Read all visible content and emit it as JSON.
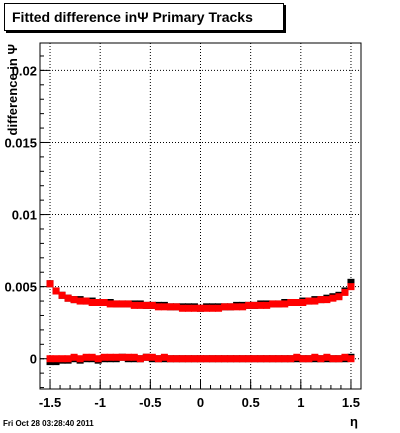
{
  "chart_data": {
    "type": "scatter",
    "title": "Fitted difference inΨ   Primary Tracks",
    "xlabel": "η",
    "ylabel": "difference in Ψ",
    "xlim": [
      -1.6,
      1.6
    ],
    "ylim": [
      -0.0021,
      0.0219
    ],
    "x_ticks": [
      -1.5,
      -1,
      -0.5,
      0,
      0.5,
      1,
      1.5
    ],
    "x_tick_labels": [
      "-1.5",
      "-1",
      "-0.5",
      "0",
      "0.5",
      "1",
      "1.5"
    ],
    "y_ticks": [
      0,
      0.005,
      0.01,
      0.015,
      0.02
    ],
    "y_tick_labels": [
      "0",
      "0.005",
      "0.01",
      "0.015",
      "0.02"
    ],
    "grid": true,
    "legend": "none",
    "series": [
      {
        "color": "#000000",
        "x": [
          -1.5,
          -1.44,
          -1.38,
          -1.32,
          -1.26,
          -1.2,
          -1.14,
          -1.08,
          -1.02,
          -0.96,
          -0.9,
          -0.84,
          -0.78,
          -0.72,
          -0.66,
          -0.6,
          -0.54,
          -0.48,
          -0.42,
          -0.36,
          -0.3,
          -0.24,
          -0.18,
          -0.12,
          -0.06,
          0,
          0.06,
          0.12,
          0.18,
          0.24,
          0.3,
          0.36,
          0.42,
          0.48,
          0.54,
          0.6,
          0.66,
          0.72,
          0.78,
          0.84,
          0.9,
          0.96,
          1.02,
          1.08,
          1.14,
          1.2,
          1.26,
          1.32,
          1.38,
          1.44,
          1.5
        ],
        "y_upper": [
          0.0052,
          0.0047,
          0.0044,
          0.0042,
          0.0041,
          0.0041,
          0.004,
          0.004,
          0.0039,
          0.0039,
          0.0039,
          0.0038,
          0.0038,
          0.0038,
          0.0038,
          0.0038,
          0.0037,
          0.0037,
          0.0037,
          0.0037,
          0.0036,
          0.0036,
          0.0036,
          0.0036,
          0.0036,
          0.0035,
          0.0036,
          0.0036,
          0.0036,
          0.0036,
          0.0036,
          0.0037,
          0.0037,
          0.0037,
          0.0037,
          0.0038,
          0.0038,
          0.0038,
          0.0038,
          0.0039,
          0.0039,
          0.0039,
          0.004,
          0.004,
          0.0041,
          0.0041,
          0.0042,
          0.0043,
          0.0044,
          0.0047,
          0.0053
        ],
        "y_lower": [
          -0.0002,
          -0.0002,
          -0.0001,
          -0.0001,
          0,
          -0.0001,
          0,
          0,
          -0.0001,
          0,
          0,
          0,
          0.0001,
          0,
          0,
          0,
          0.0001,
          0,
          0,
          0,
          0,
          0,
          0,
          0,
          0,
          0,
          0,
          0,
          0,
          0,
          0,
          0,
          0,
          0,
          0,
          0,
          0,
          0,
          0,
          0,
          0,
          0,
          0,
          0,
          0,
          0,
          0,
          0,
          0,
          0,
          0.0001
        ]
      },
      {
        "color": "#ff0000",
        "x": [
          -1.5,
          -1.44,
          -1.38,
          -1.32,
          -1.26,
          -1.2,
          -1.14,
          -1.08,
          -1.02,
          -0.96,
          -0.9,
          -0.84,
          -0.78,
          -0.72,
          -0.66,
          -0.6,
          -0.54,
          -0.48,
          -0.42,
          -0.36,
          -0.3,
          -0.24,
          -0.18,
          -0.12,
          -0.06,
          0,
          0.06,
          0.12,
          0.18,
          0.24,
          0.3,
          0.36,
          0.42,
          0.48,
          0.54,
          0.6,
          0.66,
          0.72,
          0.78,
          0.84,
          0.9,
          0.96,
          1.02,
          1.08,
          1.14,
          1.2,
          1.26,
          1.32,
          1.38,
          1.44,
          1.5
        ],
        "y_upper": [
          0.0052,
          0.0047,
          0.0044,
          0.0042,
          0.0041,
          0.004,
          0.004,
          0.0039,
          0.0039,
          0.0039,
          0.0038,
          0.0038,
          0.0038,
          0.0038,
          0.0037,
          0.0037,
          0.0037,
          0.0037,
          0.0036,
          0.0036,
          0.0036,
          0.0036,
          0.0035,
          0.0035,
          0.0035,
          0.0035,
          0.0035,
          0.0035,
          0.0035,
          0.0036,
          0.0036,
          0.0036,
          0.0036,
          0.0037,
          0.0037,
          0.0037,
          0.0037,
          0.0038,
          0.0038,
          0.0038,
          0.0039,
          0.0039,
          0.0039,
          0.004,
          0.004,
          0.0041,
          0.0041,
          0.0042,
          0.0043,
          0.0046,
          0.005
        ],
        "y_lower": [
          0,
          0,
          0,
          0,
          0.0001,
          0,
          0.0001,
          0.0001,
          0,
          0.0001,
          0.0001,
          0.0001,
          0.0001,
          0.0001,
          0.0001,
          0,
          0.0001,
          0.0001,
          0,
          0.0001,
          0,
          0,
          0,
          0,
          0,
          0,
          0,
          0,
          0,
          0,
          0,
          0,
          0,
          0,
          0,
          0,
          0,
          0,
          0,
          0,
          0,
          0.0001,
          0,
          0,
          0.0001,
          0,
          0.0001,
          0,
          0,
          0.0001,
          0
        ]
      }
    ]
  },
  "footer": {
    "timestamp": "Fri Oct 28 03:28:40 2011"
  }
}
